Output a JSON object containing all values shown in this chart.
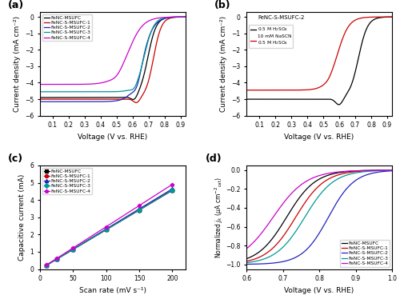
{
  "panel_labels": [
    "(a)",
    "(b)",
    "(c)",
    "(d)"
  ],
  "colors": {
    "FeNC-MSUFC": "#000000",
    "FeNC-S-MSUFC-1": "#cc0000",
    "FeNC-S-MSUFC-2": "#2222bb",
    "FeNC-S-MSUFC-3": "#009999",
    "FeNC-S-MSUFC-4": "#cc00cc"
  },
  "panel_a": {
    "xlabel": "Voltage (V vs. RHE)",
    "ylabel": "Current density (mA cm⁻²)",
    "xlim": [
      0.02,
      0.93
    ],
    "ylim": [
      -6,
      0.3
    ],
    "xticks": [
      0.1,
      0.2,
      0.3,
      0.4,
      0.5,
      0.6,
      0.7,
      0.8,
      0.9
    ],
    "yticks": [
      0,
      -1,
      -2,
      -3,
      -4,
      -5,
      -6
    ]
  },
  "panel_b": {
    "title": "FeNC-S-MSUFC-2",
    "legend": [
      "0.5 M H₂SO₄",
      "10 mM NaSCN\n0.5 M H₂SO₄"
    ],
    "colors": [
      "#000000",
      "#cc0000"
    ],
    "xlabel": "Voltage (V vs. RHE)",
    "ylabel": "Current density (mA cm⁻²)",
    "xlim": [
      0.02,
      0.93
    ],
    "ylim": [
      -6,
      0.3
    ],
    "xticks": [
      0.1,
      0.2,
      0.3,
      0.4,
      0.5,
      0.6,
      0.7,
      0.8,
      0.9
    ],
    "yticks": [
      0,
      -1,
      -2,
      -3,
      -4,
      -5,
      -6
    ]
  },
  "panel_c": {
    "xlabel": "Scan rate (mV s⁻¹)",
    "ylabel": "Capacitive current (mA)",
    "xlim": [
      0,
      220
    ],
    "ylim": [
      0,
      6
    ],
    "xticks": [
      0,
      50,
      100,
      150,
      200
    ],
    "yticks": [
      0,
      1,
      2,
      3,
      4,
      5,
      6
    ],
    "scan_rates": [
      10,
      25,
      50,
      100,
      150,
      200
    ],
    "slopes": {
      "FeNC-MSUFC": 0.0228,
      "FeNC-S-MSUFC-1": 0.0228,
      "FeNC-S-MSUFC-2": 0.0232,
      "FeNC-S-MSUFC-3": 0.0228,
      "FeNC-S-MSUFC-4": 0.0245
    },
    "markers": {
      "FeNC-MSUFC": "s",
      "FeNC-S-MSUFC-1": "o",
      "FeNC-S-MSUFC-2": "^",
      "FeNC-S-MSUFC-3": "D",
      "FeNC-S-MSUFC-4": "p"
    }
  },
  "panel_d": {
    "xlabel": "Voltage (V vs. RHE)",
    "ylabel": "Normalized jₖ (μA cm⁻²ₑₓₑ)",
    "xlim": [
      0.6,
      1.0
    ],
    "ylim": [
      -1.05,
      0.05
    ],
    "xticks": [
      0.6,
      0.7,
      0.8,
      0.9,
      1.0
    ],
    "yticks": [
      0.0,
      -0.2,
      -0.4,
      -0.6,
      -0.8,
      -1.0
    ]
  }
}
